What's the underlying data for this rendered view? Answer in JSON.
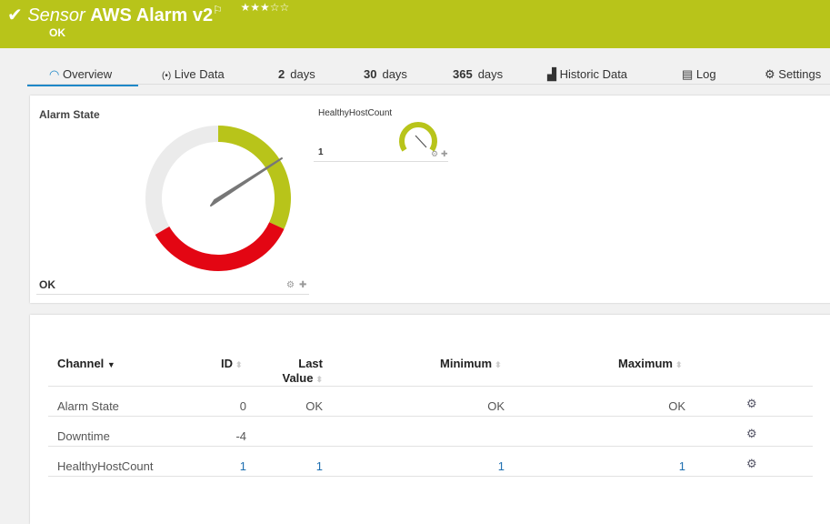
{
  "header": {
    "check_icon": "check-icon",
    "sensor_label": "Sensor",
    "title": "AWS Alarm v2",
    "flag_icon": "flag-icon",
    "stars": "★★★☆☆",
    "rating": 3,
    "status": "OK",
    "color": "#b8c41a"
  },
  "tabs": [
    {
      "label": "Overview",
      "icon": "overview-icon"
    },
    {
      "label": "Live Data",
      "icon": "live-icon"
    },
    {
      "num": "2",
      "label": "days"
    },
    {
      "num": "30",
      "label": "days"
    },
    {
      "num": "365",
      "label": "days"
    },
    {
      "label": "Historic Data",
      "icon": "chart-icon"
    },
    {
      "label": "Log",
      "icon": "log-icon"
    },
    {
      "label": "Settings",
      "icon": "gear-icon"
    }
  ],
  "gauges": {
    "main": {
      "title": "Alarm State",
      "value": "OK"
    },
    "small": {
      "title": "HealthyHostCount",
      "value": "1"
    }
  },
  "table": {
    "headers": {
      "channel": "Channel",
      "id": "ID",
      "last1": "Last",
      "last2": "Value",
      "min": "Minimum",
      "max": "Maximum"
    },
    "rows": [
      {
        "channel": "Alarm State",
        "id": "0",
        "last": "OK",
        "min": "OK",
        "max": "OK"
      },
      {
        "channel": "Downtime",
        "id": "-4",
        "last": "",
        "min": "",
        "max": ""
      },
      {
        "channel": "HealthyHostCount",
        "id": "1",
        "last": "1",
        "min": "1",
        "max": "1"
      }
    ]
  }
}
